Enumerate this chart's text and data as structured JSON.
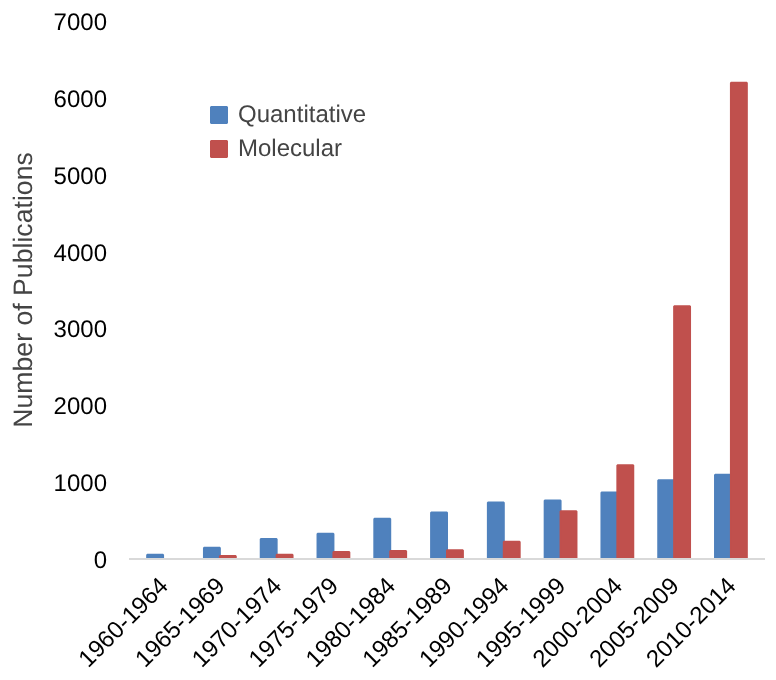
{
  "chart_data": {
    "type": "bar",
    "ylabel": "Number of Publications",
    "categories": [
      "1960-1964",
      "1965-1969",
      "1970-1974",
      "1975-1979",
      "1980-1984",
      "1985-1989",
      "1990-1994",
      "1995-1999",
      "2000-2004",
      "2005-2009",
      "2010-2014"
    ],
    "series": [
      {
        "name": "Quantitative",
        "color": "#4f81bd",
        "values": [
          55,
          145,
          260,
          330,
          525,
          605,
          735,
          760,
          865,
          1025,
          1095
        ]
      },
      {
        "name": "Molecular",
        "color": "#c0504d",
        "values": [
          0,
          40,
          55,
          90,
          105,
          115,
          225,
          620,
          1220,
          3290,
          6195
        ]
      }
    ],
    "ylim": [
      0,
      7000
    ],
    "yticks": [
      0,
      1000,
      2000,
      3000,
      4000,
      5000,
      6000,
      7000
    ],
    "grid": false,
    "legend": "top left"
  }
}
